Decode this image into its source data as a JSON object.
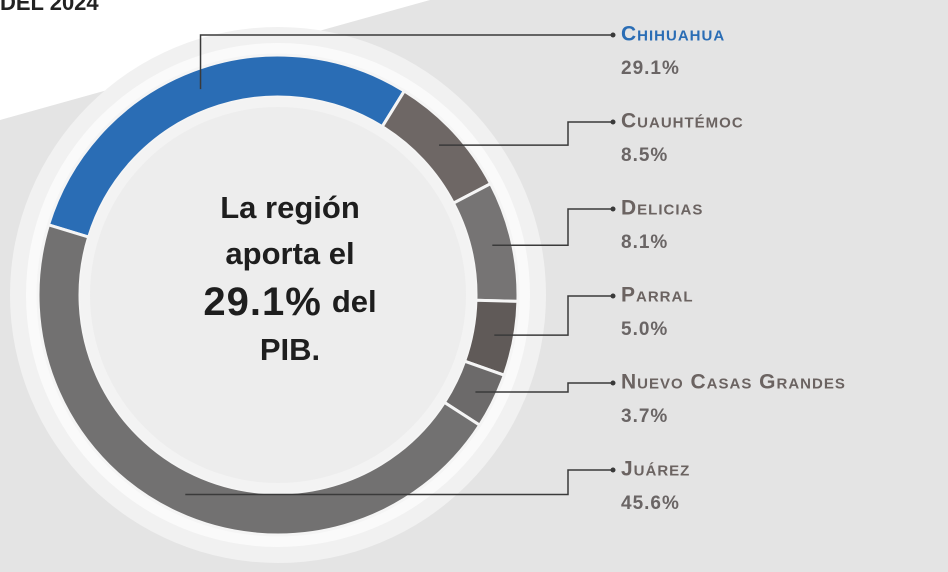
{
  "chart_data": {
    "type": "donut",
    "title": "DEL 2024",
    "categories": [
      "Chihuahua",
      "Cuauhtémoc",
      "Delicias",
      "Parral",
      "Nuevo Casas Grandes",
      "Juárez"
    ],
    "values": [
      29.1,
      8.5,
      8.1,
      5.0,
      3.7,
      45.6
    ],
    "value_labels": [
      "29.1%",
      "8.5%",
      "8.1%",
      "5.0%",
      "3.7%",
      "45.6%"
    ],
    "colors": [
      "#2a6db5",
      "#6e6765",
      "#767474",
      "#605a58",
      "#6c6a6a",
      "#727171"
    ],
    "center_text": [
      "La región",
      "aporta el",
      "29.1%",
      "del",
      "PIB."
    ]
  }
}
